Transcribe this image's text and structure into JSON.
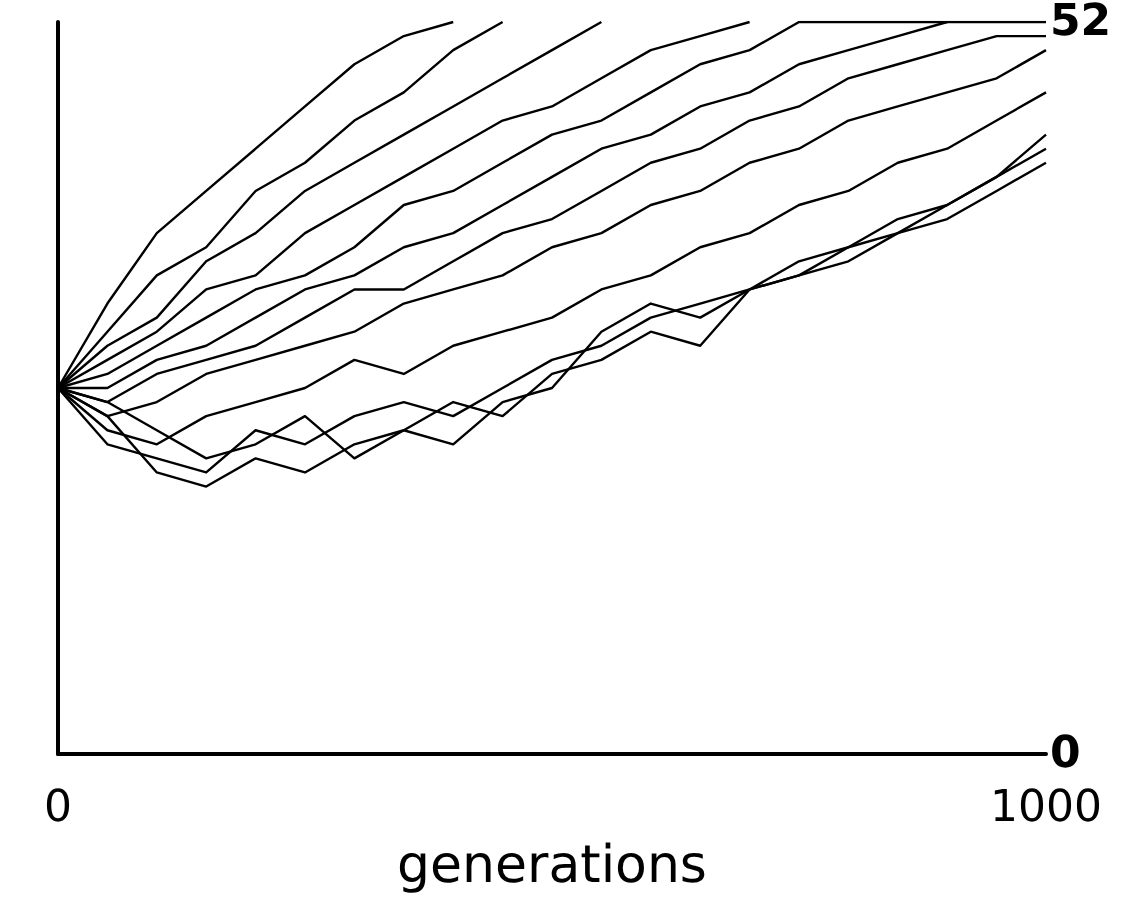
{
  "chart_data": {
    "type": "line",
    "xlabel": "generations",
    "x": [
      0,
      50,
      100,
      150,
      200,
      250,
      300,
      350,
      400,
      450,
      500,
      550,
      600,
      650,
      700,
      750,
      800,
      850,
      900,
      950,
      1000
    ],
    "xlim": [
      0,
      1000
    ],
    "xticks": [
      0,
      1000
    ],
    "ylim": [
      0,
      52
    ],
    "yticks": [
      0,
      52
    ],
    "grid": false,
    "marker": "none",
    "line_style": "solid",
    "series": [
      {
        "color": "#000000",
        "values": [
          26,
          32,
          37,
          40,
          43,
          46,
          49,
          51,
          52,
          null,
          null,
          null,
          null,
          null,
          null,
          null,
          null,
          null,
          null,
          null,
          null
        ]
      },
      {
        "color": "#000000",
        "values": [
          26,
          30,
          34,
          36,
          40,
          42,
          45,
          47,
          50,
          52,
          null,
          null,
          null,
          null,
          null,
          null,
          null,
          null,
          null,
          null,
          null
        ]
      },
      {
        "color": "#000000",
        "values": [
          26,
          29,
          31,
          35,
          37,
          40,
          42,
          44,
          46,
          48,
          50,
          52,
          null,
          null,
          null,
          null,
          null,
          null,
          null,
          null,
          null
        ]
      },
      {
        "color": "#000000",
        "values": [
          26,
          28,
          30,
          33,
          34,
          37,
          39,
          41,
          43,
          45,
          46,
          48,
          50,
          51,
          52,
          null,
          null,
          null,
          null,
          null,
          null
        ]
      },
      {
        "color": "#000000",
        "values": [
          26,
          27,
          29,
          31,
          33,
          34,
          36,
          39,
          40,
          42,
          44,
          45,
          47,
          49,
          50,
          52,
          52,
          52,
          52,
          52,
          52
        ]
      },
      {
        "color": "#000000",
        "values": [
          26,
          26,
          28,
          29,
          31,
          33,
          34,
          36,
          37,
          39,
          41,
          43,
          44,
          46,
          47,
          49,
          50,
          51,
          52,
          null,
          null
        ]
      },
      {
        "color": "#000000",
        "values": [
          26,
          25,
          27,
          28,
          29,
          31,
          33,
          33,
          35,
          37,
          38,
          40,
          42,
          43,
          45,
          46,
          48,
          49,
          50,
          51,
          51
        ]
      },
      {
        "color": "#000000",
        "values": [
          26,
          24,
          25,
          27,
          28,
          29,
          30,
          32,
          33,
          34,
          36,
          37,
          39,
          40,
          42,
          43,
          45,
          46,
          47,
          48,
          50
        ]
      },
      {
        "color": "#000000",
        "values": [
          26,
          23,
          22,
          24,
          25,
          26,
          28,
          27,
          29,
          30,
          31,
          33,
          34,
          36,
          37,
          39,
          40,
          42,
          43,
          45,
          47
        ]
      },
      {
        "color": "#000000",
        "values": [
          26,
          22,
          21,
          20,
          23,
          22,
          24,
          25,
          24,
          26,
          28,
          29,
          31,
          32,
          33,
          35,
          36,
          38,
          39,
          41,
          43
        ]
      },
      {
        "color": "#000000",
        "values": [
          26,
          24,
          20,
          19,
          21,
          20,
          22,
          23,
          25,
          24,
          27,
          28,
          30,
          29,
          33,
          34,
          35,
          37,
          38,
          40,
          42
        ]
      },
      {
        "color": "#000000",
        "values": [
          26,
          25,
          23,
          21,
          22,
          24,
          21,
          23,
          22,
          25,
          26,
          30,
          32,
          31,
          33,
          34,
          36,
          37,
          39,
          41,
          44
        ]
      }
    ]
  }
}
